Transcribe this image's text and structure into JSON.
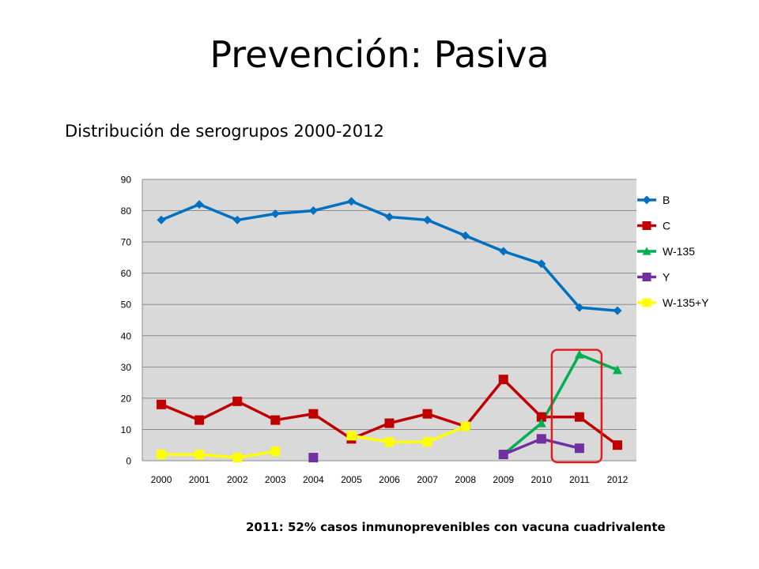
{
  "slide": {
    "title": "Prevención: Pasiva",
    "subtitle": "Distribución de serogrupos  2000-2012",
    "footnote": "2011: 52% casos inmunoprevenibles con vacuna cuadrivalente"
  },
  "chart_data": {
    "type": "line",
    "title": "",
    "xlabel": "",
    "ylabel": "",
    "categories": [
      "2000",
      "2001",
      "2002",
      "2003",
      "2004",
      "2005",
      "2006",
      "2007",
      "2008",
      "2009",
      "2010",
      "2011",
      "2012"
    ],
    "ylim": [
      0,
      90
    ],
    "yticks": [
      0,
      10,
      20,
      30,
      40,
      50,
      60,
      70,
      80,
      90
    ],
    "grid": true,
    "plot_background": "#d9d9d9",
    "legend_position": "right",
    "series": [
      {
        "name": "B",
        "color": "#0070c0",
        "marker": "diamond",
        "values": [
          77,
          82,
          77,
          79,
          80,
          83,
          78,
          77,
          72,
          67,
          63,
          49,
          48
        ]
      },
      {
        "name": "C",
        "color": "#c00000",
        "marker": "square",
        "values": [
          18,
          13,
          19,
          13,
          15,
          7,
          12,
          15,
          11,
          26,
          14,
          14,
          5
        ]
      },
      {
        "name": "W-135",
        "color": "#00b050",
        "marker": "triangle",
        "values": [
          null,
          null,
          null,
          null,
          null,
          null,
          null,
          null,
          null,
          2,
          12,
          34,
          29
        ]
      },
      {
        "name": "Y",
        "color": "#7030a0",
        "marker": "square",
        "values": [
          null,
          null,
          null,
          null,
          1,
          null,
          null,
          null,
          null,
          2,
          7,
          4,
          null
        ]
      },
      {
        "name": "W-135+Y",
        "color": "#ffff00",
        "marker": "square",
        "values": [
          2,
          2,
          1,
          3,
          null,
          8,
          6,
          6,
          11,
          null,
          null,
          null,
          null
        ]
      }
    ],
    "highlight": {
      "category": "2011",
      "color": "#e02020"
    }
  }
}
